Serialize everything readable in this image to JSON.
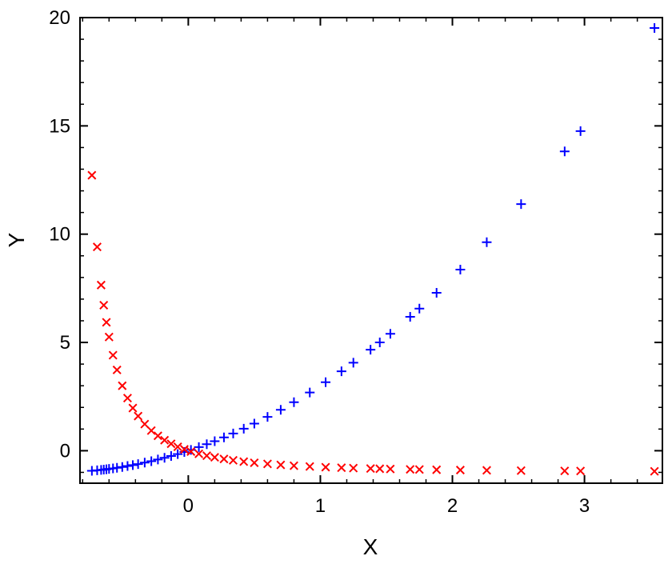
{
  "chart_data": {
    "type": "scatter",
    "title": "",
    "xlabel": "X",
    "ylabel": "Y",
    "xlim": [
      -0.82,
      3.59
    ],
    "ylim": [
      -1.5,
      20
    ],
    "xticks": [
      0,
      1,
      2,
      3
    ],
    "yticks": [
      0,
      5,
      10,
      15,
      20
    ],
    "grid": false,
    "legend": "none",
    "x": [
      -0.73,
      -0.69,
      -0.66,
      -0.64,
      -0.62,
      -0.6,
      -0.57,
      -0.54,
      -0.5,
      -0.46,
      -0.42,
      -0.38,
      -0.33,
      -0.28,
      -0.23,
      -0.18,
      -0.13,
      -0.08,
      -0.03,
      0.02,
      0.08,
      0.14,
      0.2,
      0.27,
      0.34,
      0.42,
      0.5,
      0.6,
      0.7,
      0.8,
      0.92,
      1.04,
      1.16,
      1.25,
      1.38,
      1.45,
      1.53,
      1.68,
      1.75,
      1.88,
      2.06,
      2.26,
      2.52,
      2.85,
      2.97,
      3.53
    ],
    "series": [
      {
        "marker": "plus",
        "color": "#0000ff",
        "values": [
          -0.927,
          -0.904,
          -0.884,
          -0.87,
          -0.856,
          -0.84,
          -0.815,
          -0.788,
          -0.75,
          -0.708,
          -0.664,
          -0.616,
          -0.551,
          -0.482,
          -0.407,
          -0.328,
          -0.243,
          -0.154,
          -0.059,
          0.04,
          0.166,
          0.3,
          0.44,
          0.613,
          0.796,
          1.016,
          1.25,
          1.56,
          1.89,
          2.24,
          2.686,
          3.162,
          3.666,
          4.063,
          4.664,
          5.003,
          5.401,
          6.182,
          6.563,
          7.294,
          8.364,
          9.628,
          11.39,
          13.82,
          14.76,
          19.52
        ]
      },
      {
        "marker": "cross",
        "color": "#ff0000",
        "values": [
          12.72,
          9.41,
          7.65,
          6.72,
          5.93,
          5.25,
          4.41,
          3.73,
          3.0,
          2.43,
          1.97,
          1.6,
          1.23,
          0.93,
          0.687,
          0.487,
          0.321,
          0.181,
          0.063,
          -0.039,
          -0.143,
          -0.231,
          -0.306,
          -0.38,
          -0.443,
          -0.504,
          -0.556,
          -0.609,
          -0.654,
          -0.691,
          -0.729,
          -0.76,
          -0.786,
          -0.802,
          -0.823,
          -0.833,
          -0.844,
          -0.861,
          -0.868,
          -0.879,
          -0.893,
          -0.906,
          -0.919,
          -0.933,
          -0.937,
          -0.951
        ]
      }
    ]
  }
}
